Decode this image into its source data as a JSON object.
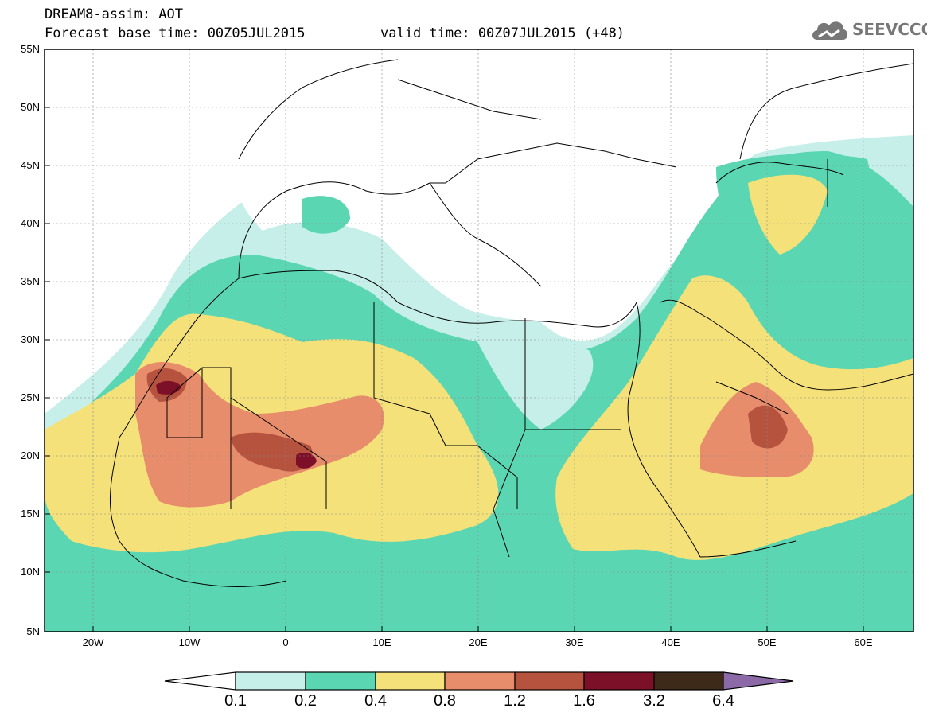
{
  "header": {
    "title": "DREAM8-assim: AOT",
    "base_time": "Forecast base time: 00Z05JUL2015",
    "valid_time": "valid time: 00Z07JUL2015 (+48)"
  },
  "logo": {
    "text": "SEEVCCC",
    "icon": "cloud-icon"
  },
  "map": {
    "projection": "lat-lon",
    "lon_range": [
      -25,
      65
    ],
    "lat_range": [
      5,
      55
    ],
    "lat_labels": [
      "55N",
      "50N",
      "45N",
      "40N",
      "35N",
      "30N",
      "25N",
      "20N",
      "15N",
      "10N",
      "5N"
    ],
    "lon_labels": [
      "20W",
      "10W",
      "0",
      "10E",
      "20E",
      "30E",
      "40E",
      "50E",
      "60E"
    ],
    "gridlines": true
  },
  "legend": {
    "labels": [
      "0.1",
      "0.2",
      "0.4",
      "0.8",
      "1.2",
      "1.6",
      "3.2",
      "6.4"
    ],
    "colors": [
      "#c6efea",
      "#5ad6b2",
      "#f5e17a",
      "#e78d6c",
      "#b6533f",
      "#7d1029",
      "#3d2a19",
      "#8c6aa8"
    ]
  }
}
